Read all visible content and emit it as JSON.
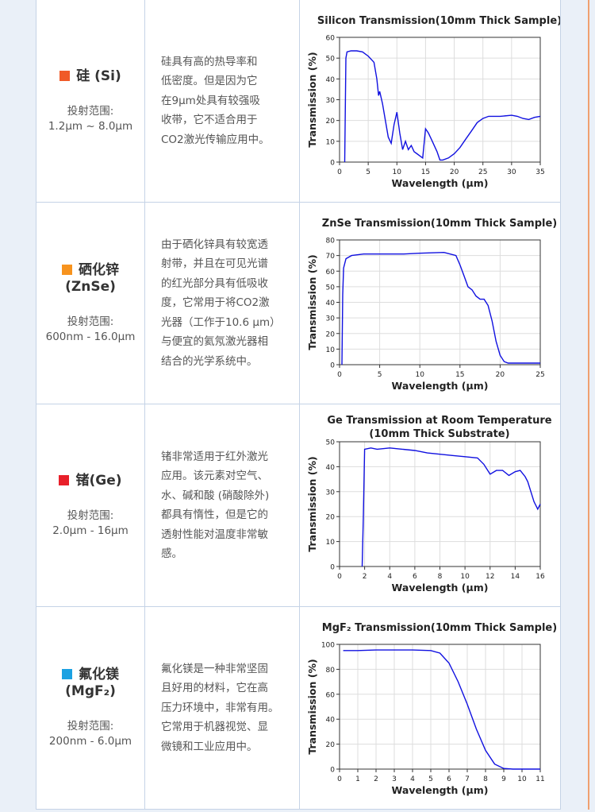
{
  "rows": [
    {
      "name": [
        "硅 (Si)"
      ],
      "swatch": "#f05a28",
      "range_label": "投射范围:",
      "range": "1.2μm ~ 8.0μm",
      "description": [
        "硅具有高的热导率和",
        "低密度。但是因为它",
        "在9μm处具有较强吸",
        "收带，它不适合用于",
        "CO2激光传输应用中。"
      ]
    },
    {
      "name": [
        "硒化锌",
        "(ZnSe)"
      ],
      "swatch": "#f7931e",
      "range_label": "投射范围:",
      "range": "600nm - 16.0μm",
      "description": [
        "由于硒化锌具有较宽透",
        "射带，并且在可见光谱",
        "的红光部分具有低吸收",
        "度，它常用于将CO2激",
        "光器（工作于10.6 μm）",
        "与便宜的氦氖激光器相",
        "结合的光学系统中。"
      ]
    },
    {
      "name": [
        "锗(Ge)"
      ],
      "swatch": "#e8202a",
      "range_label": "投射范围:",
      "range": "2.0μm - 16μm",
      "description": [
        "锗非常适用于红外激光",
        "应用。该元素对空气、",
        "水、碱和酸 (硝酸除外)",
        "都具有惰性，但是它的",
        "透射性能对温度非常敏",
        "感。"
      ]
    },
    {
      "name": [
        "氟化镁",
        "(MgF₂)"
      ],
      "swatch": "#1ba1e2",
      "range_label": "投射范围:",
      "range": "200nm - 6.0μm",
      "description": [
        "氟化镁是一种非常坚固",
        "且好用的材料，它在高",
        "压力环境中，非常有用。",
        "它常用于机器视觉、显",
        "微镜和工业应用中。"
      ]
    }
  ],
  "chart_data": [
    {
      "type": "line",
      "title": "Silicon Transmission(10mm Thick Sample)",
      "x_label": "Wavelength (μm)",
      "y_label": "Transmission (%)",
      "x": [
        0.9,
        1.1,
        1.3,
        2,
        3,
        4,
        5,
        6,
        6.5,
        6.8,
        7,
        7.5,
        8,
        8.5,
        9,
        9.5,
        10,
        10.5,
        11,
        11.5,
        12,
        12.5,
        13,
        13.5,
        14,
        14.5,
        15,
        15.5,
        16,
        17,
        17.5,
        18,
        19,
        20,
        21,
        22,
        23,
        24,
        25,
        26,
        28,
        30,
        31,
        32,
        33,
        34,
        35
      ],
      "series": [
        {
          "color": "#1010e0",
          "values": [
            0,
            50,
            53,
            53.5,
            53.5,
            53,
            51,
            48,
            40,
            32,
            34,
            28,
            20,
            12,
            9,
            18,
            24,
            14,
            6,
            10,
            6,
            8,
            5,
            4,
            3,
            2,
            16,
            14,
            11,
            5,
            1,
            1,
            2,
            4,
            7,
            11,
            15,
            19,
            21,
            22,
            22,
            22.5,
            22,
            21,
            20.5,
            21.5,
            22
          ]
        }
      ],
      "xlim": [
        0,
        35
      ],
      "ylim": [
        0,
        60
      ],
      "xticks": [
        0,
        5,
        10,
        15,
        20,
        25,
        30,
        35
      ],
      "yticks": [
        0,
        10,
        20,
        30,
        40,
        50,
        60
      ],
      "grid": true
    },
    {
      "type": "line",
      "title": "ZnSe Transmission(10mm Thick Sample)",
      "x_label": "Wavelength (μm)",
      "y_label": "Transmission (%)",
      "x": [
        0.3,
        0.4,
        0.5,
        0.8,
        1.5,
        3,
        5,
        8,
        10,
        13,
        14.5,
        15,
        15.5,
        16,
        16.5,
        17,
        17.5,
        18,
        18.5,
        19,
        19.5,
        20,
        20.5,
        21,
        25
      ],
      "series": [
        {
          "color": "#1010e0",
          "values": [
            0,
            45,
            62,
            68,
            70,
            71,
            71,
            71,
            71.5,
            72,
            70,
            64,
            57,
            50,
            48,
            44,
            42,
            42,
            38,
            28,
            15,
            6,
            2,
            1,
            1
          ]
        }
      ],
      "xlim": [
        0,
        25
      ],
      "ylim": [
        0,
        80
      ],
      "xticks": [
        0,
        5,
        10,
        15,
        20,
        25
      ],
      "yticks": [
        0,
        10,
        20,
        30,
        40,
        50,
        60,
        70,
        80
      ],
      "grid": true
    },
    {
      "type": "line",
      "title": "Ge Transmission at Room Temperature",
      "subtitle": "(10mm Thick Substrate)",
      "x_label": "Wavelength (μm)",
      "y_label": "Transmission (%)",
      "x": [
        1.8,
        1.9,
        2,
        2.5,
        3,
        4,
        5,
        6,
        7,
        8,
        9,
        10,
        11,
        11.5,
        12,
        12.5,
        13,
        13.5,
        14,
        14.4,
        14.8,
        15,
        15.5,
        15.8,
        16
      ],
      "series": [
        {
          "color": "#1010e0",
          "values": [
            0,
            20,
            47,
            47.5,
            47,
            47.5,
            47,
            46.5,
            45.5,
            45,
            44.5,
            44,
            43.5,
            41,
            37,
            38.5,
            38.5,
            36.5,
            38,
            38.5,
            36,
            34,
            26,
            23,
            25
          ]
        }
      ],
      "xlim": [
        0,
        16
      ],
      "ylim": [
        0,
        50
      ],
      "xticks": [
        0,
        2,
        4,
        6,
        8,
        10,
        12,
        14,
        16
      ],
      "yticks": [
        0,
        10,
        20,
        30,
        40,
        50
      ],
      "grid": true
    },
    {
      "type": "line",
      "title": "MgF₂ Transmission(10mm Thick Sample)",
      "x_label": "Wavelength (μm)",
      "y_label": "Transmission (%)",
      "x": [
        0.2,
        1,
        2,
        3,
        4,
        5,
        5.5,
        6,
        6.5,
        7,
        7.5,
        8,
        8.5,
        9,
        9.5,
        11
      ],
      "series": [
        {
          "color": "#1010e0",
          "values": [
            95,
            95,
            95.5,
            95.5,
            95.5,
            95,
            93,
            85,
            70,
            52,
            32,
            15,
            4,
            0.5,
            0,
            0
          ]
        }
      ],
      "xlim": [
        0,
        11
      ],
      "ylim": [
        0,
        100
      ],
      "xticks": [
        0,
        1,
        2,
        3,
        4,
        5,
        6,
        7,
        8,
        9,
        10,
        11
      ],
      "yticks": [
        0,
        20,
        40,
        60,
        80,
        100
      ],
      "grid": true
    }
  ]
}
